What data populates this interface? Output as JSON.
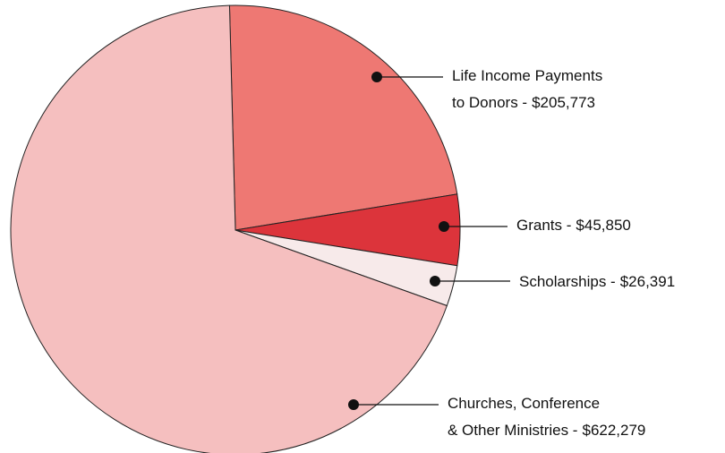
{
  "chart_data": {
    "type": "pie",
    "categories": [
      [
        "Life Income Payments",
        "to Donors -"
      ],
      [
        "Grants -"
      ],
      [
        "Scholarships -"
      ],
      [
        "Churches, Conference",
        "& Other Ministries -"
      ]
    ],
    "values": [
      205773,
      45850,
      26391,
      622279
    ],
    "value_labels": [
      "$205,773",
      "$45,850",
      "$26,391",
      "$622,279"
    ],
    "colors": [
      "#ee7873",
      "#dc343b",
      "#f7eaea",
      "#f5bfbf"
    ]
  }
}
